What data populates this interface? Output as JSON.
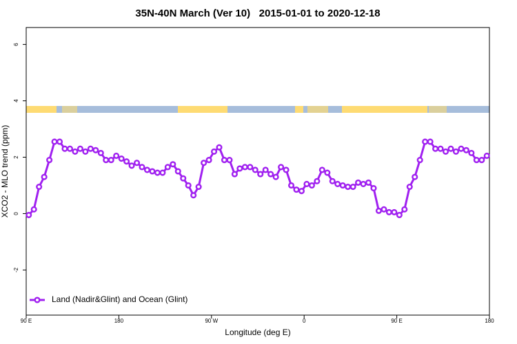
{
  "chart_data": {
    "type": "line",
    "title": "35N-40N March (Ver 10)   2015-01-01 to 2020-12-18",
    "x_label": "Longitude (deg E)",
    "y_label": "XCO2 - MLO trend (ppm)",
    "x": [
      92.5,
      97.5,
      102.5,
      107.5,
      112.5,
      117.5,
      122.5,
      127.5,
      132.5,
      137.5,
      142.5,
      147.5,
      152.5,
      157.5,
      162.5,
      167.5,
      172.5,
      177.5,
      182.5,
      187.5,
      192.5,
      197.5,
      202.5,
      207.5,
      212.5,
      217.5,
      222.5,
      227.5,
      232.5,
      237.5,
      242.5,
      247.5,
      252.5,
      257.5,
      262.5,
      267.5,
      272.5,
      277.5,
      282.5,
      287.5,
      292.5,
      297.5,
      302.5,
      307.5,
      312.5,
      317.5,
      322.5,
      327.5,
      332.5,
      337.5,
      342.5,
      347.5,
      352.5,
      357.5,
      362.5,
      367.5,
      372.5,
      377.5,
      382.5,
      387.5,
      392.5,
      397.5,
      402.5,
      407.5,
      412.5,
      417.5,
      422.5,
      427.5,
      432.5,
      437.5,
      442.5,
      447.5,
      452.5,
      457.5,
      462.5,
      467.5,
      472.5,
      477.5,
      482.5,
      487.5,
      492.5,
      497.5,
      502.5,
      507.5,
      512.5,
      517.5,
      522.5,
      527.5,
      532.5,
      537.5
    ],
    "series": [
      {
        "name": "Land (Nadir&Glint) and Ocean (Glint)",
        "color": "#a020f0",
        "values": [
          -0.05,
          0.15,
          0.95,
          1.3,
          1.9,
          2.55,
          2.55,
          2.3,
          2.3,
          2.2,
          2.3,
          2.2,
          2.3,
          2.25,
          2.15,
          1.9,
          1.9,
          2.05,
          1.95,
          1.85,
          1.7,
          1.8,
          1.65,
          1.55,
          1.5,
          1.45,
          1.45,
          1.65,
          1.75,
          1.5,
          1.25,
          1.0,
          0.65,
          0.95,
          1.8,
          1.9,
          2.2,
          2.35,
          1.9,
          1.9,
          1.4,
          1.6,
          1.65,
          1.65,
          1.55,
          1.4,
          1.55,
          1.4,
          1.3,
          1.65,
          1.55,
          1.0,
          0.85,
          0.8,
          1.05,
          1.0,
          1.15,
          1.55,
          1.45,
          1.15,
          1.05,
          1.0,
          0.95,
          0.95,
          1.1,
          1.05,
          1.1,
          0.9,
          0.1,
          0.15,
          0.05,
          0.05,
          -0.05,
          0.15,
          0.95,
          1.3,
          1.9,
          2.55,
          2.55,
          2.3,
          2.3,
          2.2,
          2.3,
          2.2,
          2.3,
          2.25,
          2.15,
          1.9,
          1.9,
          2.05
        ]
      }
    ],
    "xlim": [
      90,
      540
    ],
    "xticks": [
      {
        "value": 90,
        "label": "90 E"
      },
      180,
      {
        "value": 270,
        "label": "90 W"
      },
      {
        "value": 360,
        "label": "0"
      },
      {
        "value": 450,
        "label": "90 E"
      },
      {
        "value": 540,
        "label": "180"
      }
    ],
    "ylim": [
      -3.6,
      6.6
    ],
    "yticks": [
      -2,
      0,
      2,
      4,
      6
    ],
    "legend": "bottom-left"
  }
}
